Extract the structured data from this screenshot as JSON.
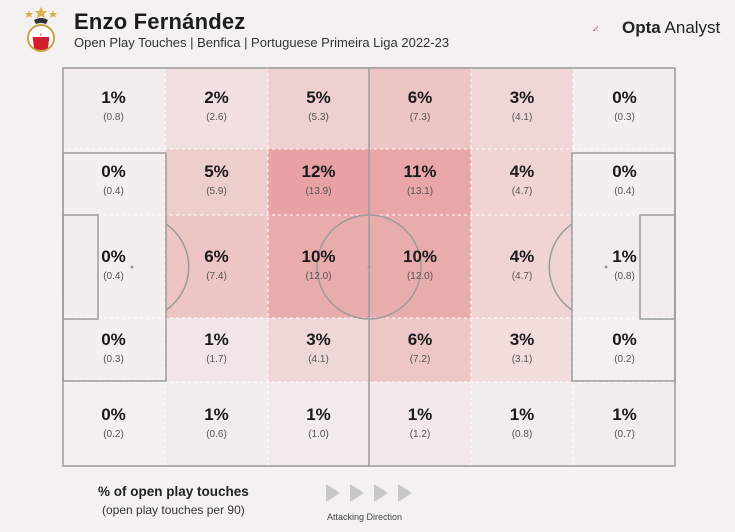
{
  "header": {
    "title": "Enzo Fernández",
    "subtitle": "Open Play Touches | Benfica | Portuguese Primeira Liga 2022-23",
    "brand_bold": "Opta",
    "brand_light": "Analyst"
  },
  "legend": {
    "title": "% of open play touches",
    "subtitle": "(open play touches per 90)",
    "direction_label": "Attacking Direction"
  },
  "colors": {
    "background": "#f3f2f0",
    "heat_max": "#e8a2a4",
    "lines": "#9b9b9b",
    "brand_accent": "#c0284f"
  },
  "chart_data": {
    "type": "heatmap",
    "title": "Enzo Fernández",
    "subtitle": "Open Play Touches | Benfica | Portuguese Primeira Liga 2022-23",
    "columns": 6,
    "rows": 5,
    "attacking_direction": "left-to-right",
    "cells": [
      [
        {
          "pct": "1%",
          "avg": "(0.8)"
        },
        {
          "pct": "2%",
          "avg": "(2.6)"
        },
        {
          "pct": "5%",
          "avg": "(5.3)"
        },
        {
          "pct": "6%",
          "avg": "(7.3)"
        },
        {
          "pct": "3%",
          "avg": "(4.1)"
        },
        {
          "pct": "0%",
          "avg": "(0.3)"
        }
      ],
      [
        {
          "pct": "0%",
          "avg": "(0.4)"
        },
        {
          "pct": "5%",
          "avg": "(5.9)"
        },
        {
          "pct": "12%",
          "avg": "(13.9)"
        },
        {
          "pct": "11%",
          "avg": "(13.1)"
        },
        {
          "pct": "4%",
          "avg": "(4.7)"
        },
        {
          "pct": "0%",
          "avg": "(0.4)"
        }
      ],
      [
        {
          "pct": "0%",
          "avg": "(0.4)"
        },
        {
          "pct": "6%",
          "avg": "(7.4)"
        },
        {
          "pct": "10%",
          "avg": "(12.0)"
        },
        {
          "pct": "10%",
          "avg": "(12.0)"
        },
        {
          "pct": "4%",
          "avg": "(4.7)"
        },
        {
          "pct": "1%",
          "avg": "(0.8)"
        }
      ],
      [
        {
          "pct": "0%",
          "avg": "(0.3)"
        },
        {
          "pct": "1%",
          "avg": "(1.7)"
        },
        {
          "pct": "3%",
          "avg": "(4.1)"
        },
        {
          "pct": "6%",
          "avg": "(7.2)"
        },
        {
          "pct": "3%",
          "avg": "(3.1)"
        },
        {
          "pct": "0%",
          "avg": "(0.2)"
        }
      ],
      [
        {
          "pct": "0%",
          "avg": "(0.2)"
        },
        {
          "pct": "1%",
          "avg": "(0.6)"
        },
        {
          "pct": "1%",
          "avg": "(1.0)"
        },
        {
          "pct": "1%",
          "avg": "(1.2)"
        },
        {
          "pct": "1%",
          "avg": "(0.8)"
        },
        {
          "pct": "1%",
          "avg": "(0.7)"
        }
      ]
    ],
    "per90_values": [
      [
        0.8,
        2.6,
        5.3,
        7.3,
        4.1,
        0.3
      ],
      [
        0.4,
        5.9,
        13.9,
        13.1,
        4.7,
        0.4
      ],
      [
        0.4,
        7.4,
        12.0,
        12.0,
        4.7,
        0.8
      ],
      [
        0.3,
        1.7,
        4.1,
        7.2,
        3.1,
        0.2
      ],
      [
        0.2,
        0.6,
        1.0,
        1.2,
        0.8,
        0.7
      ]
    ]
  }
}
